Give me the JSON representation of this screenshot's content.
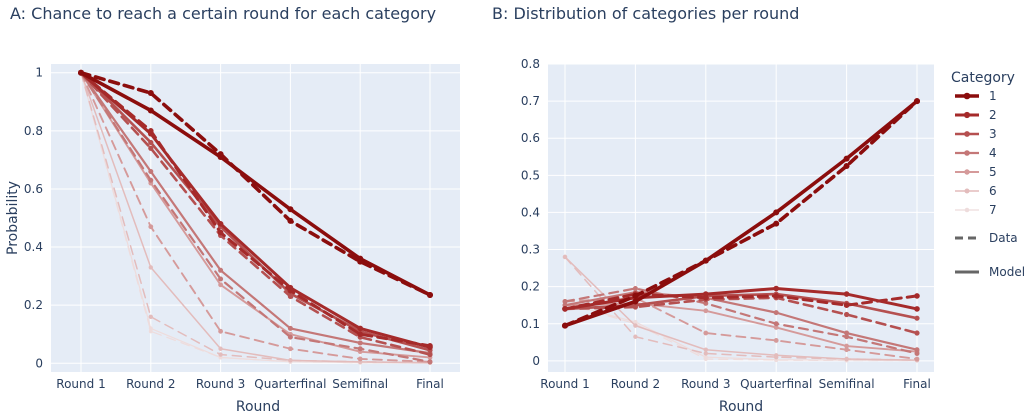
{
  "colors": {
    "plot_bg": "#e5ecf6",
    "grid": "#ffffff",
    "text": "#2a3f5f",
    "series": [
      "#8b0d0d",
      "#a52a2a",
      "#b55050",
      "#c47777",
      "#d59a9a",
      "#e3bcbc",
      "#eedcdc"
    ]
  },
  "legend": {
    "title": "Category",
    "data_label": "Data",
    "model_label": "Model"
  },
  "chart_data": [
    {
      "id": "A",
      "type": "line",
      "title": "A: Chance to reach a certain round for each category",
      "xlabel": "Round",
      "ylabel": "Probability",
      "categories": [
        "Round 1",
        "Round 2",
        "Round 3",
        "Quarterfinal",
        "Semifinal",
        "Final"
      ],
      "ylim": [
        -0.03,
        1.03
      ],
      "yticks": [
        0,
        0.2,
        0.4,
        0.6,
        0.8,
        1
      ],
      "ytick_labels": [
        "0",
        "0.2",
        "0.4",
        "0.6",
        "0.8",
        "1"
      ],
      "grid": true,
      "series": [
        {
          "name": "1",
          "kind": "Model",
          "values": [
            1,
            0.87,
            0.71,
            0.53,
            0.36,
            0.235
          ]
        },
        {
          "name": "1",
          "kind": "Data",
          "values": [
            1,
            0.93,
            0.72,
            0.49,
            0.35,
            0.235
          ]
        },
        {
          "name": "2",
          "kind": "Model",
          "values": [
            1,
            0.79,
            0.48,
            0.26,
            0.12,
            0.055
          ]
        },
        {
          "name": "2",
          "kind": "Data",
          "values": [
            1,
            0.8,
            0.45,
            0.25,
            0.1,
            0.06
          ]
        },
        {
          "name": "3",
          "kind": "Model",
          "values": [
            1,
            0.76,
            0.47,
            0.24,
            0.11,
            0.045
          ]
        },
        {
          "name": "3",
          "kind": "Data",
          "values": [
            1,
            0.74,
            0.44,
            0.23,
            0.09,
            0.03
          ]
        },
        {
          "name": "4",
          "kind": "Model",
          "values": [
            1,
            0.66,
            0.32,
            0.12,
            0.07,
            0.035
          ]
        },
        {
          "name": "4",
          "kind": "Data",
          "values": [
            1,
            0.63,
            0.29,
            0.09,
            0.05,
            0.005
          ]
        },
        {
          "name": "5",
          "kind": "Model",
          "values": [
            1,
            0.62,
            0.27,
            0.1,
            0.04,
            0.02
          ]
        },
        {
          "name": "5",
          "kind": "Data",
          "values": [
            1,
            0.47,
            0.11,
            0.05,
            0.015,
            0.005
          ]
        },
        {
          "name": "6",
          "kind": "Model",
          "values": [
            1,
            0.33,
            0.05,
            0.01,
            0.005,
            0.002
          ]
        },
        {
          "name": "6",
          "kind": "Data",
          "values": [
            1,
            0.16,
            0.03,
            0.01,
            0.005,
            0.002
          ]
        },
        {
          "name": "7",
          "kind": "Model",
          "values": [
            1,
            0.12,
            0.02,
            0.005,
            0.002,
            0.001
          ]
        },
        {
          "name": "7",
          "kind": "Data",
          "values": [
            1,
            0.11,
            0.02,
            0.005,
            0.002,
            0.001
          ]
        }
      ]
    },
    {
      "id": "B",
      "type": "line",
      "title": "B: Distribution of categories per round",
      "xlabel": "Round",
      "ylabel": "",
      "categories": [
        "Round 1",
        "Round 2",
        "Round 3",
        "Quarterfinal",
        "Semifinal",
        "Final"
      ],
      "ylim": [
        -0.03,
        0.8
      ],
      "yticks": [
        0,
        0.1,
        0.2,
        0.3,
        0.4,
        0.5,
        0.6,
        0.7,
        0.8
      ],
      "ytick_labels": [
        "0",
        "0.1",
        "0.2",
        "0.3",
        "0.4",
        "0.5",
        "0.6",
        "0.7",
        "0.8"
      ],
      "grid": true,
      "legend_position": "right",
      "series": [
        {
          "name": "1",
          "kind": "Model",
          "values": [
            0.095,
            0.16,
            0.27,
            0.4,
            0.545,
            0.7
          ]
        },
        {
          "name": "1",
          "kind": "Data",
          "values": [
            0.095,
            0.175,
            0.27,
            0.37,
            0.525,
            0.7
          ]
        },
        {
          "name": "2",
          "kind": "Model",
          "values": [
            0.14,
            0.17,
            0.18,
            0.195,
            0.18,
            0.14
          ]
        },
        {
          "name": "2",
          "kind": "Data",
          "values": [
            0.14,
            0.18,
            0.17,
            0.175,
            0.15,
            0.175
          ]
        },
        {
          "name": "3",
          "kind": "Model",
          "values": [
            0.14,
            0.15,
            0.175,
            0.18,
            0.155,
            0.115
          ]
        },
        {
          "name": "3",
          "kind": "Data",
          "values": [
            0.14,
            0.145,
            0.165,
            0.17,
            0.125,
            0.075
          ]
        },
        {
          "name": "4",
          "kind": "Model",
          "values": [
            0.15,
            0.185,
            0.17,
            0.13,
            0.075,
            0.03
          ]
        },
        {
          "name": "4",
          "kind": "Data",
          "values": [
            0.16,
            0.195,
            0.155,
            0.1,
            0.065,
            0.02
          ]
        },
        {
          "name": "5",
          "kind": "Model",
          "values": [
            0.15,
            0.155,
            0.135,
            0.09,
            0.04,
            0.025
          ]
        },
        {
          "name": "5",
          "kind": "Data",
          "values": [
            0.16,
            0.17,
            0.075,
            0.055,
            0.03,
            0.005
          ]
        },
        {
          "name": "6",
          "kind": "Model",
          "values": [
            0.28,
            0.095,
            0.03,
            0.015,
            0.005,
            0.002
          ]
        },
        {
          "name": "6",
          "kind": "Data",
          "values": [
            0.28,
            0.065,
            0.02,
            0.01,
            0.005,
            0.002
          ]
        },
        {
          "name": "7",
          "kind": "Model",
          "values": [
            0.155,
            0.105,
            0.01,
            0.003,
            0.002,
            0.001
          ]
        },
        {
          "name": "7",
          "kind": "Data",
          "values": [
            0.155,
            0.1,
            0.005,
            0.002,
            0.001,
            0.001
          ]
        }
      ]
    }
  ]
}
